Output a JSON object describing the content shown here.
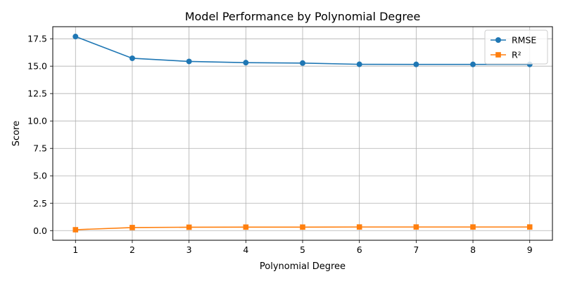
{
  "chart_data": {
    "type": "line",
    "title": "Model Performance by Polynomial Degree",
    "xlabel": "Polynomial Degree",
    "ylabel": "Score",
    "x": [
      1,
      2,
      3,
      4,
      5,
      6,
      7,
      8,
      9
    ],
    "xlim": [
      0.6,
      9.4
    ],
    "ylim": [
      -0.88,
      18.6
    ],
    "xticks": [
      1,
      2,
      3,
      4,
      5,
      6,
      7,
      8,
      9
    ],
    "yticks": [
      0.0,
      2.5,
      5.0,
      7.5,
      10.0,
      12.5,
      15.0,
      17.5
    ],
    "ytick_labels": [
      "0.0",
      "2.5",
      "5.0",
      "7.5",
      "10.0",
      "12.5",
      "15.0",
      "17.5"
    ],
    "grid": true,
    "legend_position": "top-right",
    "series": [
      {
        "name": "RMSE",
        "marker": "circle",
        "color": "#1f77b4",
        "values": [
          17.7,
          15.72,
          15.43,
          15.32,
          15.28,
          15.17,
          15.16,
          15.16,
          15.16
        ]
      },
      {
        "name": "R²",
        "marker": "square",
        "color": "#ff7f0e",
        "values": [
          0.08,
          0.28,
          0.31,
          0.32,
          0.32,
          0.33,
          0.33,
          0.33,
          0.33
        ]
      }
    ]
  }
}
